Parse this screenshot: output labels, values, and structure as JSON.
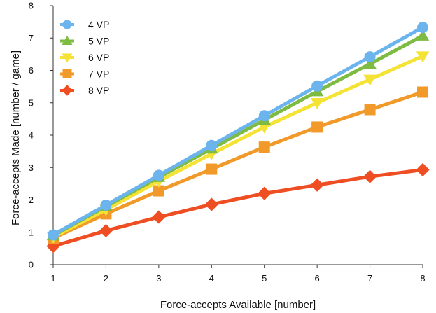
{
  "chart_data": {
    "type": "line",
    "title": "",
    "xlabel": "Force-accepts Available [number]",
    "ylabel": "Force-accepts Made [number / game]",
    "x": [
      1,
      2,
      3,
      4,
      5,
      6,
      7,
      8
    ],
    "xlim": [
      1,
      8
    ],
    "ylim": [
      0,
      8
    ],
    "y_ticks": [
      0,
      1,
      2,
      3,
      4,
      5,
      6,
      7,
      8
    ],
    "grid": false,
    "legend_position": "top-left",
    "series": [
      {
        "name": "4 VP",
        "color": "#6cb4ee",
        "marker": "circle",
        "values": [
          0.92,
          1.84,
          2.76,
          3.68,
          4.6,
          5.52,
          6.42,
          7.33
        ]
      },
      {
        "name": "5 VP",
        "color": "#7dbb42",
        "marker": "triangle-up",
        "values": [
          0.9,
          1.8,
          2.7,
          3.58,
          4.47,
          5.35,
          6.2,
          7.07
        ]
      },
      {
        "name": "6 VP",
        "color": "#f4e234",
        "marker": "triangle-down",
        "values": [
          0.85,
          1.7,
          2.58,
          3.42,
          4.25,
          5.0,
          5.72,
          6.44
        ]
      },
      {
        "name": "7 VP",
        "color": "#f19a2a",
        "marker": "square",
        "values": [
          0.82,
          1.57,
          2.28,
          2.95,
          3.63,
          4.25,
          4.79,
          5.33
        ]
      },
      {
        "name": "8 VP",
        "color": "#ef4d22",
        "marker": "diamond",
        "values": [
          0.57,
          1.05,
          1.47,
          1.86,
          2.2,
          2.46,
          2.72,
          2.93
        ]
      }
    ]
  }
}
